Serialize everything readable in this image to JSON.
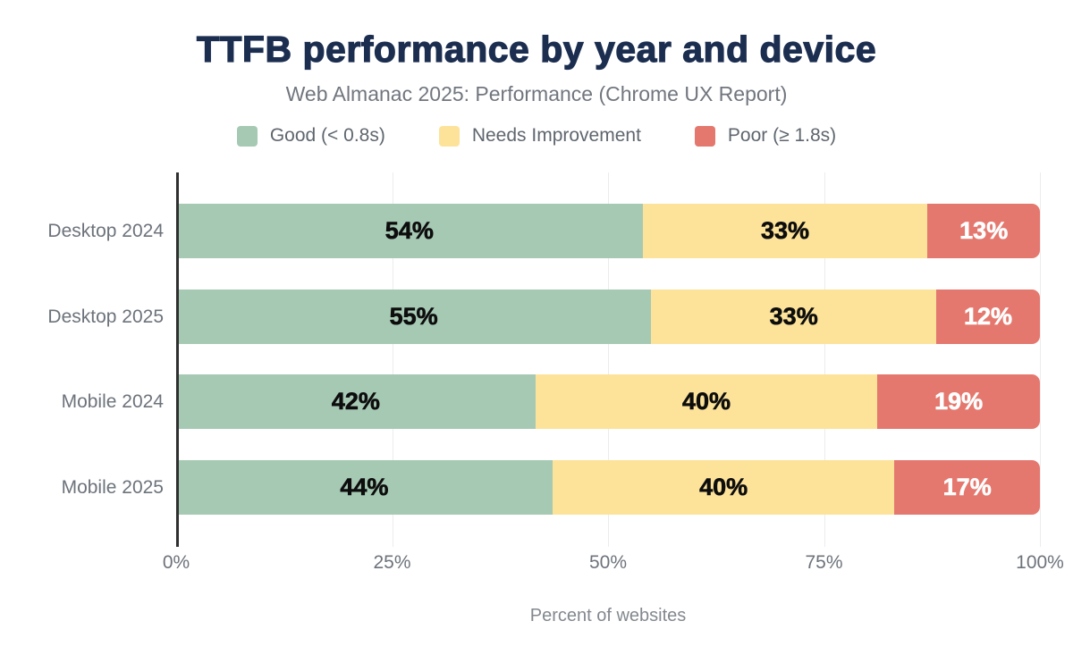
{
  "title": "TTFB performance by year and device",
  "subtitle": "Web Almanac 2025: Performance (Chrome UX Report)",
  "legend": [
    {
      "label": "Good (< 0.8s)",
      "color": "#a6c9b4"
    },
    {
      "label": "Needs Improvement",
      "color": "#fde39a"
    },
    {
      "label": "Poor (≥ 1.8s)",
      "color": "#e4786e"
    }
  ],
  "chart_data": {
    "type": "bar",
    "orientation": "horizontal",
    "stacked": true,
    "title": "TTFB performance by year and device",
    "subtitle": "Web Almanac 2025: Performance (Chrome UX Report)",
    "categories": [
      "Desktop 2024",
      "Desktop 2025",
      "Mobile 2024",
      "Mobile 2025"
    ],
    "series": [
      {
        "name": "Good (< 0.8s)",
        "color": "#a6c9b4",
        "label_color": "#0d0d0d",
        "values": [
          54,
          55,
          42,
          44
        ]
      },
      {
        "name": "Needs Improvement",
        "color": "#fde39a",
        "label_color": "#0d0d0d",
        "values": [
          33,
          33,
          40,
          40
        ]
      },
      {
        "name": "Poor (≥ 1.8s)",
        "color": "#e4786e",
        "label_color": "#ffffff",
        "values": [
          13,
          12,
          19,
          17
        ]
      }
    ],
    "value_suffix": "%",
    "xlabel": "Percent of websites",
    "xlim": [
      0,
      100
    ],
    "x_ticks": [
      {
        "value": 0,
        "label": "0%"
      },
      {
        "value": 25,
        "label": "25%"
      },
      {
        "value": 50,
        "label": "50%"
      },
      {
        "value": 75,
        "label": "75%"
      },
      {
        "value": 100,
        "label": "100%"
      }
    ],
    "grid": true,
    "legend_position": "top"
  },
  "colors": {
    "title": "#1c2e50",
    "subtitle_text": "#71767e",
    "axis_line": "#2f2f2f",
    "gridline": "#ececec",
    "tick_text": "#6d737b"
  }
}
